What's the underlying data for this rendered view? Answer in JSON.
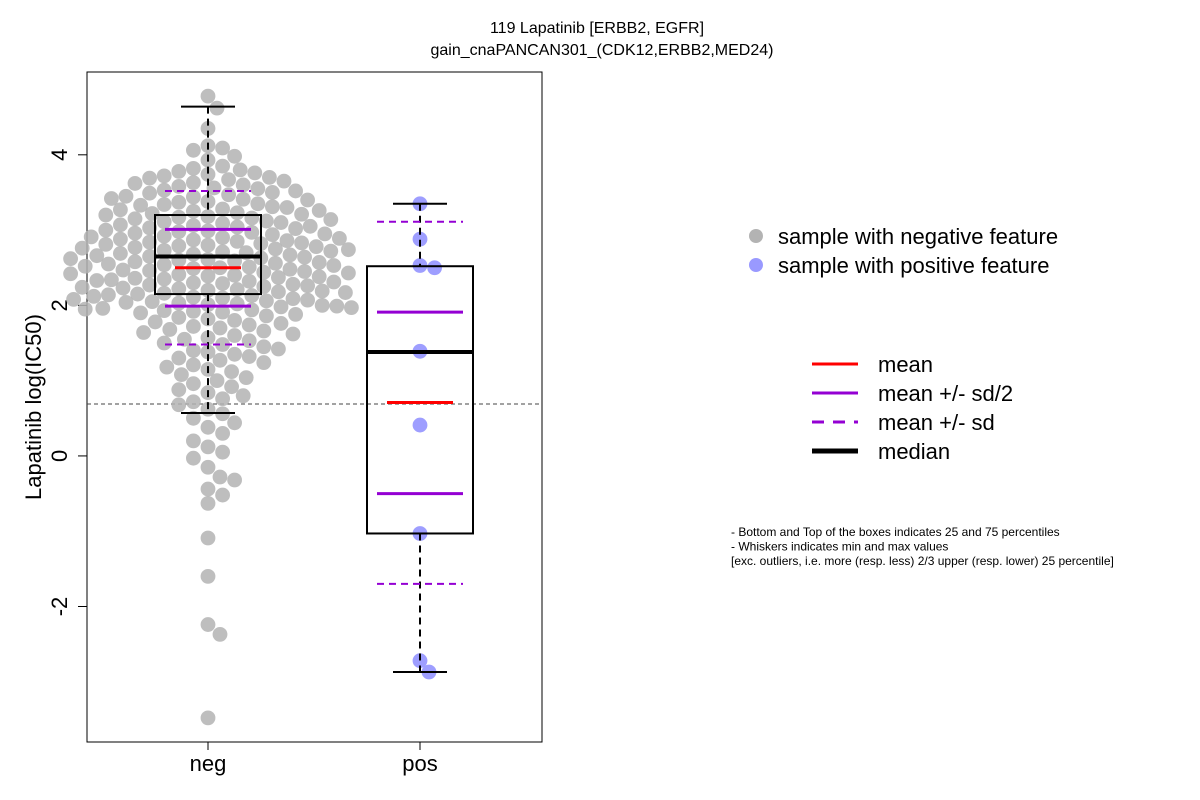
{
  "chart_data": {
    "type": "box",
    "title": "119 Lapatinib [ERBB2, EGFR]",
    "subtitle": "gain_cnaPANCAN301_(CDK12,ERBB2,MED24)",
    "xlabel": "",
    "ylabel": "Lapatinib log(IC50)",
    "ylim": [
      -3.8,
      5.1
    ],
    "yticks": [
      -2,
      0,
      2,
      4
    ],
    "ytick_labels": [
      "-2",
      "0",
      "2",
      "4"
    ],
    "categories": [
      "neg",
      "pos"
    ],
    "reference_line_y": 0.69,
    "groups": [
      {
        "name": "neg",
        "color": "#b3b3b3",
        "q1": 2.15,
        "median": 2.65,
        "q3": 3.2,
        "whisker_low": 0.57,
        "whisker_high": 4.64,
        "mean": 2.5,
        "mean_minus_half_sd": 1.99,
        "mean_plus_half_sd": 3.01,
        "mean_minus_sd": 1.48,
        "mean_plus_sd": 3.52,
        "points": [
          4.78,
          4.62,
          4.35,
          4.12,
          4.09,
          4.06,
          3.98,
          3.93,
          3.85,
          3.82,
          3.8,
          3.78,
          3.76,
          3.74,
          3.72,
          3.7,
          3.69,
          3.67,
          3.65,
          3.63,
          3.62,
          3.6,
          3.58,
          3.56,
          3.55,
          3.53,
          3.52,
          3.5,
          3.49,
          3.47,
          3.45,
          3.44,
          3.42,
          3.41,
          3.4,
          3.38,
          3.37,
          3.35,
          3.34,
          3.33,
          3.31,
          3.3,
          3.28,
          3.27,
          3.26,
          3.25,
          3.23,
          3.22,
          3.21,
          3.2,
          3.18,
          3.17,
          3.16,
          3.15,
          3.14,
          3.12,
          3.11,
          3.1,
          3.09,
          3.07,
          3.06,
          3.05,
          3.04,
          3.03,
          3.02,
          3.0,
          2.99,
          2.98,
          2.97,
          2.96,
          2.95,
          2.94,
          2.92,
          2.91,
          2.9,
          2.89,
          2.88,
          2.87,
          2.86,
          2.85,
          2.84,
          2.83,
          2.82,
          2.81,
          2.8,
          2.79,
          2.78,
          2.77,
          2.76,
          2.75,
          2.74,
          2.73,
          2.72,
          2.71,
          2.7,
          2.69,
          2.68,
          2.67,
          2.66,
          2.65,
          2.64,
          2.63,
          2.62,
          2.61,
          2.6,
          2.59,
          2.58,
          2.57,
          2.56,
          2.55,
          2.54,
          2.53,
          2.52,
          2.51,
          2.5,
          2.49,
          2.48,
          2.47,
          2.46,
          2.45,
          2.44,
          2.43,
          2.42,
          2.41,
          2.4,
          2.39,
          2.38,
          2.37,
          2.36,
          2.35,
          2.34,
          2.33,
          2.32,
          2.31,
          2.3,
          2.29,
          2.28,
          2.27,
          2.26,
          2.25,
          2.24,
          2.23,
          2.22,
          2.21,
          2.2,
          2.19,
          2.18,
          2.17,
          2.16,
          2.15,
          2.14,
          2.13,
          2.12,
          2.11,
          2.1,
          2.09,
          2.08,
          2.07,
          2.06,
          2.05,
          2.04,
          2.03,
          2.02,
          2.01,
          2.0,
          1.99,
          1.98,
          1.97,
          1.96,
          1.95,
          1.94,
          1.93,
          1.92,
          1.91,
          1.9,
          1.88,
          1.86,
          1.84,
          1.82,
          1.8,
          1.78,
          1.76,
          1.74,
          1.72,
          1.7,
          1.68,
          1.66,
          1.64,
          1.62,
          1.6,
          1.57,
          1.55,
          1.53,
          1.5,
          1.48,
          1.45,
          1.42,
          1.4,
          1.38,
          1.35,
          1.32,
          1.3,
          1.27,
          1.24,
          1.21,
          1.18,
          1.15,
          1.12,
          1.08,
          1.04,
          1.0,
          0.96,
          0.92,
          0.88,
          0.84,
          0.8,
          0.76,
          0.72,
          0.68,
          0.62,
          0.56,
          0.5,
          0.44,
          0.38,
          0.3,
          0.2,
          0.12,
          0.05,
          -0.03,
          -0.15,
          -0.28,
          -0.32,
          -0.44,
          -0.52,
          -0.63,
          -1.09,
          -1.6,
          -2.24,
          -2.37,
          -3.48
        ],
        "outliers": []
      },
      {
        "name": "pos",
        "color": "#9999ff",
        "q1": -1.03,
        "median": 1.38,
        "q3": 2.52,
        "whisker_low": -2.87,
        "whisker_high": 3.35,
        "mean": 0.71,
        "mean_minus_half_sd": -0.5,
        "mean_plus_half_sd": 1.91,
        "mean_minus_sd": -1.7,
        "mean_plus_sd": 3.11,
        "points": [
          3.35,
          2.88,
          2.5,
          2.53,
          1.39,
          0.41,
          -1.03,
          -2.72,
          -2.87
        ],
        "outliers": []
      }
    ],
    "legend_points": [
      {
        "label": "sample with negative feature",
        "color": "#b3b3b3"
      },
      {
        "label": "sample with positive feature",
        "color": "#9999ff"
      }
    ],
    "legend_lines": [
      {
        "label": "mean",
        "color": "#ff0000",
        "style": "solid",
        "weight": "normal"
      },
      {
        "label": "mean +/- sd/2",
        "color": "#9400d3",
        "style": "solid",
        "weight": "normal"
      },
      {
        "label": "mean +/- sd",
        "color": "#9400d3",
        "style": "dashed",
        "weight": "normal"
      },
      {
        "label": "median",
        "color": "#000000",
        "style": "solid",
        "weight": "bold"
      }
    ],
    "notes": [
      "- Bottom and Top of the boxes indicates 25 and 75 percentiles",
      "- Whiskers indicates min and max values",
      "[exc. outliers, i.e. more (resp. less) 2/3 upper (resp. lower) 25 percentile]"
    ]
  }
}
